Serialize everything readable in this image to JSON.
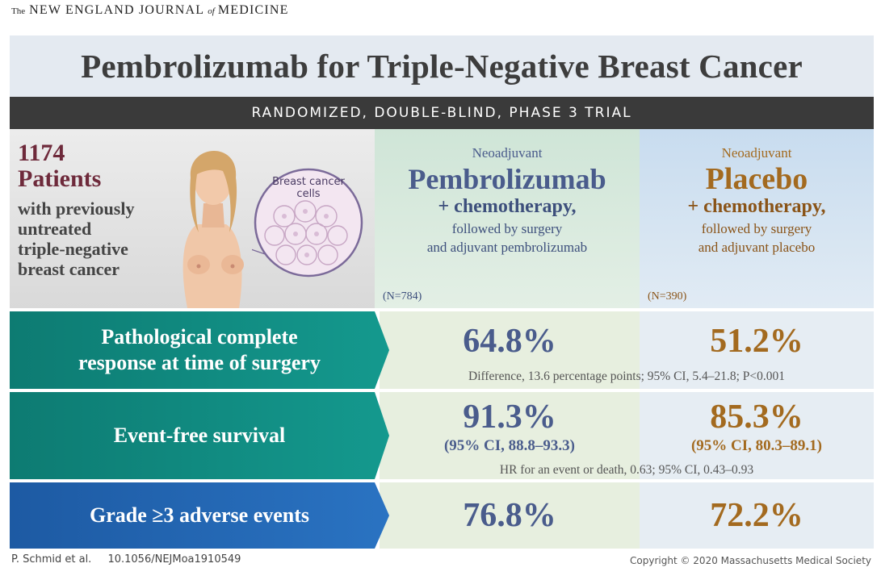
{
  "journal": {
    "the": "The",
    "name_a": "NEW ENGLAND JOURNAL",
    "of": "of",
    "name_b": "MEDICINE"
  },
  "title": "Pembrolizumab for Triple-Negative Breast Cancer",
  "trial_type": "RANDOMIZED, DOUBLE-BLIND, PHASE 3 TRIAL",
  "patients": {
    "count": "1174",
    "label": "Patients",
    "desc": [
      "with previously",
      "untreated",
      "triple-negative",
      "breast cancer"
    ],
    "illustration_label": [
      "Breast cancer",
      "cells"
    ]
  },
  "arms": [
    {
      "neo": "Neoadjuvant",
      "drug": "Pembrolizumab",
      "chemo": "+ chemotherapy,",
      "follow": [
        "followed by surgery",
        "and adjuvant pembrolizumab"
      ],
      "n": "(N=784)"
    },
    {
      "neo": "Neoadjuvant",
      "drug": "Placebo",
      "chemo": "+ chemotherapy,",
      "follow": [
        "followed by surgery",
        "and adjuvant placebo"
      ],
      "n": "(N=390)"
    }
  ],
  "outcomes": [
    {
      "label": [
        "Pathological complete",
        "response at time of surgery"
      ],
      "pemb": "64.8%",
      "plac": "51.2%",
      "stat": "Difference, 13.6 percentage points; 95% CI, 5.4–21.8; P<0.001"
    },
    {
      "label": [
        "Event-free survival"
      ],
      "pemb": "91.3%",
      "pemb_ci": "(95% CI, 88.8–93.3)",
      "plac": "85.3%",
      "plac_ci": "(95% CI, 80.3–89.1)",
      "stat": "HR for an event or death, 0.63; 95% CI, 0.43–0.93"
    },
    {
      "label": [
        "Grade ≥3 adverse events"
      ],
      "pemb": "76.8%",
      "plac": "72.2%"
    }
  ],
  "footer": {
    "authors": "P. Schmid et al.",
    "doi": "10.1056/NEJMoa1910549",
    "copyright": "Copyright © 2020 Massachusetts Medical Society"
  },
  "colors": {
    "pembrolizumab": "#4a5c8c",
    "placebo": "#a36a1f",
    "teal": "#14998e",
    "blue": "#2a73c2",
    "patients": "#6e2a3b"
  }
}
